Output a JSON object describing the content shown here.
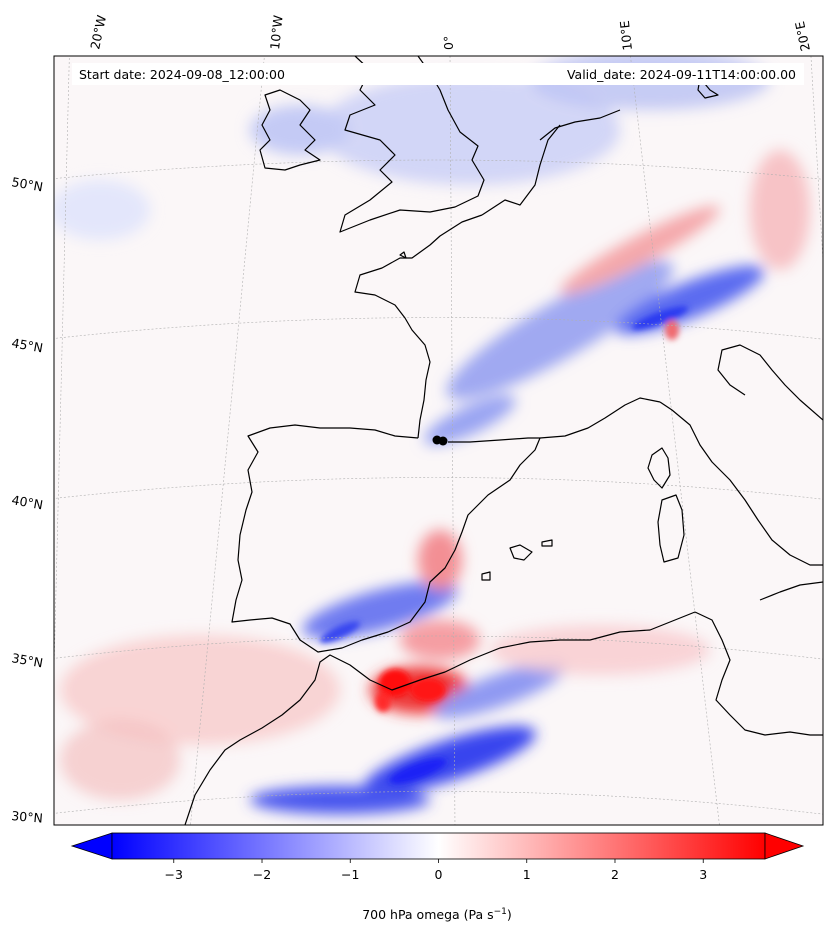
{
  "header": {
    "start_date": "Start date: 2024-09-08_12:00:00",
    "valid_date": "Valid_date: 2024-09-11T14:00:00.00"
  },
  "longitude_labels": [
    "20°W",
    "10°W",
    "0°",
    "10°E",
    "20°E"
  ],
  "latitude_labels": [
    "50°N",
    "45°N",
    "40°N",
    "35°N",
    "30°N"
  ],
  "colorbar": {
    "ticks": [
      "−3",
      "−2",
      "−1",
      "0",
      "1",
      "2",
      "3"
    ],
    "label_main": "700 hPa omega (Pa s",
    "label_sup": "−1",
    "label_end": ")",
    "range": [
      -3.7,
      3.7
    ],
    "cmap": "bwr",
    "extend": "both"
  },
  "colors": {
    "negative": "#0000ff",
    "neutral": "#ffffff",
    "positive": "#ff0000",
    "coastline": "#000000",
    "gridline": "#b0b0b0"
  },
  "marker": {
    "label": "point marker",
    "color": "#000000"
  }
}
